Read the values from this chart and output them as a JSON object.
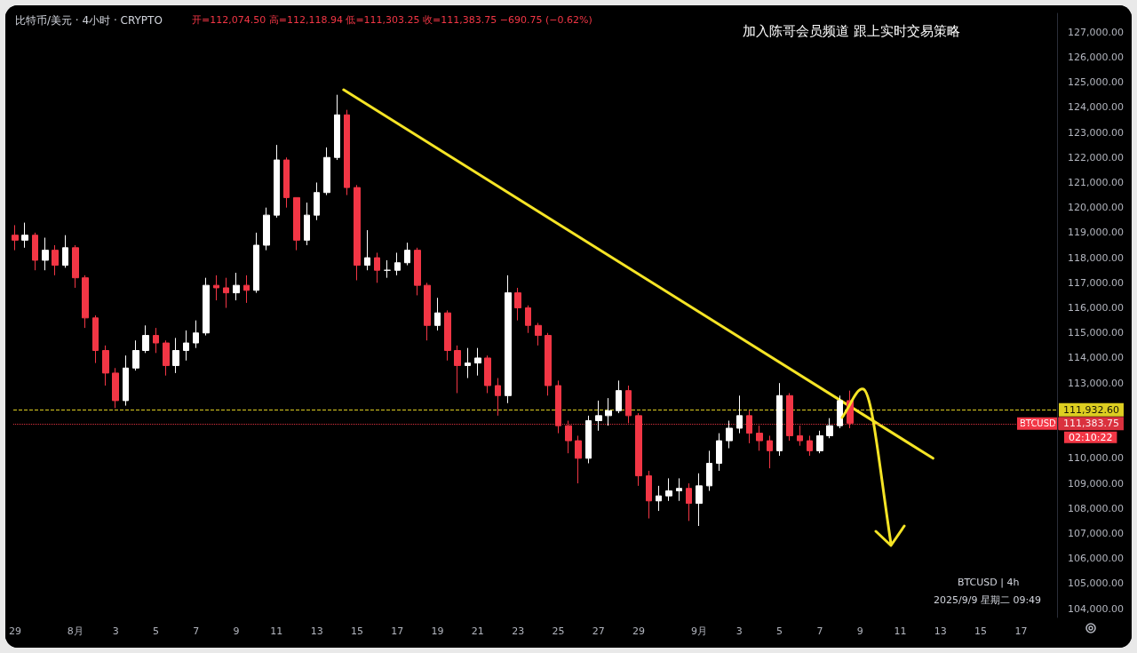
{
  "chart_data": {
    "type": "candlestick",
    "title": "比特币/美元 · 4小时 · CRYPTO",
    "subtitle": "开=112,074.50 高=112,118.94 低=111,303.25 收=111,383.75 −690.75 (−0.62%)",
    "annotations": [
      "加入陈哥会员频道 跟上实时交易策略",
      "BTCUSD | 4h",
      "2025/9/9 星期二 09:49",
      "BTCUSD",
      "02:10:22"
    ],
    "colors": [
      "#f23645",
      "#ffffff",
      "#f23645",
      "#ffffff",
      "#f23645",
      "#ffffff",
      "#f23645",
      "#f23645",
      "#f23645",
      "#f23645",
      "#f23645",
      "#ffffff",
      "#ffffff",
      "#ffffff",
      "#f23645",
      "#f23645",
      "#ffffff",
      "#ffffff",
      "#ffffff",
      "#ffffff",
      "#f23645",
      "#f23645",
      "#ffffff",
      "#f23645",
      "#ffffff",
      "#ffffff",
      "#ffffff",
      "#f23645",
      "#f23645",
      "#ffffff",
      "#ffffff",
      "#ffffff",
      "#ffffff",
      "#f23645",
      "#f23645",
      "#ffffff",
      "#f23645",
      "#ffffff",
      "#ffffff",
      "#ffffff",
      "#f23645",
      "#f23645",
      "#ffffff",
      "#f23645",
      "#f23645",
      "#ffffff",
      "#ffffff",
      "#f23645",
      "#f23645",
      "#ffffff",
      "#f23645",
      "#f23645",
      "#f23645",
      "#f23645",
      "#f23645",
      "#f23645",
      "#f23645",
      "#ffffff",
      "#ffffff",
      "#ffffff",
      "#ffffff",
      "#f23645",
      "#f23645",
      "#f23645",
      "#ffffff",
      "#ffffff",
      "#ffffff",
      "#f23645",
      "#ffffff",
      "#ffffff",
      "#ffffff",
      "#ffffff",
      "#ffffff",
      "#f23645",
      "#f23645",
      "#f23645",
      "#ffffff",
      "#f23645",
      "#f23645",
      "#f23645",
      "#ffffff",
      "#ffffff",
      "#ffffff",
      "#f23645"
    ],
    "x": [
      "2025-07-29T00:00",
      "2025-07-29T12:00",
      "2025-07-30T00:00",
      "2025-07-30T12:00",
      "2025-07-31T00:00",
      "2025-07-31T12:00",
      "2025-08-01T00:00",
      "2025-08-01T12:00",
      "2025-08-02T00:00",
      "2025-08-02T12:00",
      "2025-08-03T00:00",
      "2025-08-03T12:00",
      "2025-08-04T00:00",
      "2025-08-04T12:00",
      "2025-08-05T00:00",
      "2025-08-05T12:00",
      "2025-08-06T00:00",
      "2025-08-06T12:00",
      "2025-08-07T00:00",
      "2025-08-07T12:00",
      "2025-08-08T00:00",
      "2025-08-08T12:00",
      "2025-08-09T00:00",
      "2025-08-09T12:00",
      "2025-08-10T00:00",
      "2025-08-10T12:00",
      "2025-08-11T00:00",
      "2025-08-11T12:00",
      "2025-08-12T00:00",
      "2025-08-12T12:00",
      "2025-08-13T00:00",
      "2025-08-13T12:00",
      "2025-08-14T00:00",
      "2025-08-14T12:00",
      "2025-08-15T00:00",
      "2025-08-15T12:00",
      "2025-08-16T00:00",
      "2025-08-16T12:00",
      "2025-08-17T00:00",
      "2025-08-17T12:00",
      "2025-08-18T00:00",
      "2025-08-18T12:00",
      "2025-08-19T00:00",
      "2025-08-19T12:00",
      "2025-08-20T00:00",
      "2025-08-20T12:00",
      "2025-08-21T00:00",
      "2025-08-21T12:00",
      "2025-08-22T00:00",
      "2025-08-22T12:00",
      "2025-08-23T00:00",
      "2025-08-23T12:00",
      "2025-08-24T00:00",
      "2025-08-24T12:00",
      "2025-08-25T00:00",
      "2025-08-25T12:00",
      "2025-08-26T00:00",
      "2025-08-26T12:00",
      "2025-08-27T00:00",
      "2025-08-27T12:00",
      "2025-08-28T00:00",
      "2025-08-28T12:00",
      "2025-08-29T00:00",
      "2025-08-29T12:00",
      "2025-08-30T00:00",
      "2025-08-30T12:00",
      "2025-08-31T00:00",
      "2025-08-31T12:00",
      "2025-09-01T00:00",
      "2025-09-01T12:00",
      "2025-09-02T00:00",
      "2025-09-02T12:00",
      "2025-09-03T00:00",
      "2025-09-03T12:00",
      "2025-09-04T00:00",
      "2025-09-04T12:00",
      "2025-09-05T00:00",
      "2025-09-05T12:00",
      "2025-09-06T00:00",
      "2025-09-06T12:00",
      "2025-09-07T00:00",
      "2025-09-07T12:00",
      "2025-09-08T00:00",
      "2025-09-08T12:00"
    ],
    "ohlc": [
      [
        118900,
        119300,
        118300,
        118700
      ],
      [
        118700,
        119400,
        118400,
        118900
      ],
      [
        118900,
        119000,
        117500,
        117900
      ],
      [
        117900,
        118800,
        117500,
        118300
      ],
      [
        118300,
        118500,
        117300,
        117700
      ],
      [
        117700,
        118900,
        117600,
        118400
      ],
      [
        118400,
        118500,
        116800,
        117200
      ],
      [
        117200,
        117300,
        115200,
        115600
      ],
      [
        115600,
        115700,
        113800,
        114300
      ],
      [
        114300,
        114500,
        112900,
        113400
      ],
      [
        113400,
        113600,
        112000,
        112300
      ],
      [
        112300,
        114100,
        112100,
        113600
      ],
      [
        113600,
        114700,
        113500,
        114300
      ],
      [
        114300,
        115300,
        114200,
        114900
      ],
      [
        114900,
        115200,
        114200,
        114600
      ],
      [
        114600,
        114700,
        113300,
        113700
      ],
      [
        113700,
        114800,
        113400,
        114300
      ],
      [
        114300,
        115100,
        113900,
        114600
      ],
      [
        114600,
        115500,
        114400,
        115000
      ],
      [
        115000,
        117200,
        114900,
        116900
      ],
      [
        116900,
        117300,
        116300,
        116800
      ],
      [
        116800,
        117200,
        116000,
        116600
      ],
      [
        116600,
        117400,
        116300,
        116900
      ],
      [
        116900,
        117300,
        116200,
        116700
      ],
      [
        116700,
        119000,
        116600,
        118500
      ],
      [
        118500,
        120000,
        118300,
        119700
      ],
      [
        119700,
        122500,
        119600,
        121900
      ],
      [
        121900,
        122000,
        120000,
        120400
      ],
      [
        120400,
        120400,
        118300,
        118700
      ],
      [
        118700,
        120200,
        118500,
        119700
      ],
      [
        119700,
        121000,
        119500,
        120600
      ],
      [
        120600,
        122400,
        120500,
        122000
      ],
      [
        122000,
        124500,
        121900,
        123700
      ],
      [
        123700,
        123900,
        120500,
        120800
      ],
      [
        120800,
        120900,
        117100,
        117700
      ],
      [
        117700,
        119100,
        117500,
        118000
      ],
      [
        118000,
        118200,
        117000,
        117500
      ],
      [
        117500,
        117900,
        117200,
        117500
      ],
      [
        117500,
        118200,
        117300,
        117800
      ],
      [
        117800,
        118600,
        117700,
        118300
      ],
      [
        118300,
        118400,
        116500,
        116900
      ],
      [
        116900,
        117000,
        114700,
        115300
      ],
      [
        115300,
        116400,
        115100,
        115800
      ],
      [
        115800,
        115900,
        113900,
        114300
      ],
      [
        114300,
        114500,
        112600,
        113700
      ],
      [
        113700,
        114400,
        113200,
        113800
      ],
      [
        113800,
        114400,
        113300,
        114000
      ],
      [
        114000,
        114100,
        112600,
        112900
      ],
      [
        112900,
        113200,
        111700,
        112500
      ],
      [
        112500,
        117300,
        112200,
        116600
      ],
      [
        116600,
        116800,
        115500,
        116000
      ],
      [
        116000,
        116100,
        115000,
        115300
      ],
      [
        115300,
        115400,
        114500,
        114900
      ],
      [
        114900,
        115000,
        112500,
        112900
      ],
      [
        112900,
        113100,
        111000,
        111300
      ],
      [
        111300,
        111500,
        110200,
        110700
      ],
      [
        110700,
        110900,
        109000,
        110000
      ],
      [
        110000,
        111700,
        109800,
        111500
      ],
      [
        111500,
        112300,
        111100,
        111700
      ],
      [
        111700,
        112400,
        111300,
        111900
      ],
      [
        111900,
        113100,
        111800,
        112700
      ],
      [
        112700,
        112900,
        111400,
        111700
      ],
      [
        111700,
        111800,
        108900,
        109300
      ],
      [
        109300,
        109500,
        107600,
        108300
      ],
      [
        108300,
        108900,
        107900,
        108500
      ],
      [
        108500,
        109200,
        108300,
        108700
      ],
      [
        108700,
        109200,
        108300,
        108800
      ],
      [
        108800,
        109000,
        107500,
        108200
      ],
      [
        108200,
        109400,
        107300,
        108900
      ],
      [
        108900,
        110300,
        108700,
        109800
      ],
      [
        109800,
        111000,
        109500,
        110700
      ],
      [
        110700,
        111500,
        110400,
        111200
      ],
      [
        111200,
        112500,
        111000,
        111700
      ],
      [
        111700,
        111900,
        110600,
        111000
      ],
      [
        111000,
        111300,
        110300,
        110700
      ],
      [
        110700,
        110900,
        109600,
        110300
      ],
      [
        110300,
        113000,
        110100,
        112500
      ],
      [
        112500,
        112600,
        110700,
        110900
      ],
      [
        110900,
        111300,
        110500,
        110700
      ],
      [
        110700,
        110900,
        110100,
        110300
      ],
      [
        110300,
        111100,
        110200,
        110900
      ],
      [
        110900,
        111600,
        110800,
        111300
      ],
      [
        111300,
        112500,
        111200,
        112300
      ],
      [
        112300,
        112700,
        111200,
        111400
      ]
    ],
    "series": [
      {
        "type": "line",
        "color": "#f5e425",
        "x": [
          "2025-08-14T08:00",
          "2025-09-12T15:00"
        ],
        "values": [
          124700,
          110000
        ]
      }
    ],
    "marker": "none",
    "ref_lines": [
      {
        "axis": "y",
        "value": 111932.6,
        "label": "111,932.60",
        "color": "#f5e425",
        "line_style": "dashed"
      },
      {
        "axis": "y",
        "value": 111383.75,
        "label": "111,383.75",
        "color": "#f23645",
        "line_style": "dotted"
      }
    ],
    "xlim": [
      "2025-07-28T22:00",
      "2025-09-18T19:00"
    ],
    "xticks": [
      {
        "value": "2025-07-29",
        "label": "29"
      },
      {
        "value": "2025-08-01",
        "label": "8月"
      },
      {
        "value": "2025-08-03",
        "label": "3"
      },
      {
        "value": "2025-08-05",
        "label": "5"
      },
      {
        "value": "2025-08-07",
        "label": "7"
      },
      {
        "value": "2025-08-09",
        "label": "9"
      },
      {
        "value": "2025-08-11",
        "label": "11"
      },
      {
        "value": "2025-08-13",
        "label": "13"
      },
      {
        "value": "2025-08-15",
        "label": "15"
      },
      {
        "value": "2025-08-17",
        "label": "17"
      },
      {
        "value": "2025-08-19",
        "label": "19"
      },
      {
        "value": "2025-08-21",
        "label": "21"
      },
      {
        "value": "2025-08-23",
        "label": "23"
      },
      {
        "value": "2025-08-25",
        "label": "25"
      },
      {
        "value": "2025-08-27",
        "label": "27"
      },
      {
        "value": "2025-08-29",
        "label": "29"
      },
      {
        "value": "2025-09-01",
        "label": "9月"
      },
      {
        "value": "2025-09-03",
        "label": "3"
      },
      {
        "value": "2025-09-05",
        "label": "5"
      },
      {
        "value": "2025-09-07",
        "label": "7"
      },
      {
        "value": "2025-09-09",
        "label": "9"
      },
      {
        "value": "2025-09-11",
        "label": "11"
      },
      {
        "value": "2025-09-13",
        "label": "13"
      },
      {
        "value": "2025-09-15",
        "label": "15"
      },
      {
        "value": "2025-09-17",
        "label": "17"
      }
    ],
    "ylim": [
      103650,
      127750
    ],
    "yticks": [
      {
        "value": 104000,
        "label": "104,000.00"
      },
      {
        "value": 105000,
        "label": "105,000.00"
      },
      {
        "value": 106000,
        "label": "106,000.00"
      },
      {
        "value": 107000,
        "label": "107,000.00"
      },
      {
        "value": 108000,
        "label": "108,000.00"
      },
      {
        "value": 109000,
        "label": "109,000.00"
      },
      {
        "value": 110000,
        "label": "110,000.00"
      },
      {
        "value": 113000,
        "label": "113,000.00"
      },
      {
        "value": 114000,
        "label": "114,000.00"
      },
      {
        "value": 115000,
        "label": "115,000.00"
      },
      {
        "value": 116000,
        "label": "116,000.00"
      },
      {
        "value": 117000,
        "label": "117,000.00"
      },
      {
        "value": 118000,
        "label": "118,000.00"
      },
      {
        "value": 119000,
        "label": "119,000.00"
      },
      {
        "value": 120000,
        "label": "120,000.00"
      },
      {
        "value": 121000,
        "label": "121,000.00"
      },
      {
        "value": 122000,
        "label": "122,000.00"
      },
      {
        "value": 123000,
        "label": "123,000.00"
      },
      {
        "value": 124000,
        "label": "124,000.00"
      },
      {
        "value": 125000,
        "label": "125,000.00"
      },
      {
        "value": 126000,
        "label": "126,000.00"
      },
      {
        "value": 127000,
        "label": "127,000.00"
      }
    ]
  }
}
